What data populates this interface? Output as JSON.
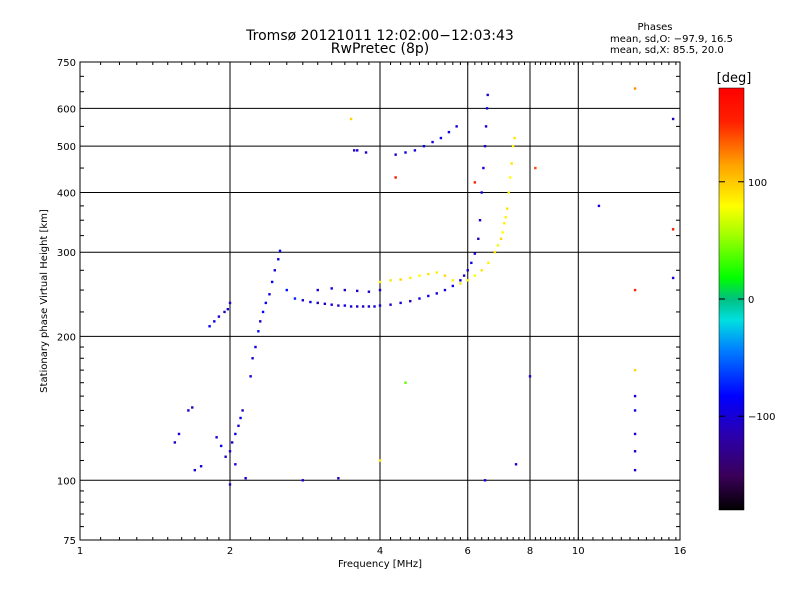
{
  "chart_data": {
    "type": "scatter",
    "title": "Tromsø 20121011 12:02:00−12:03:43",
    "subtitle": "RwPretec (8p)",
    "xlabel": "Frequency [MHz]",
    "ylabel": "Stationary phase Virtual Height [km]",
    "x_scale": "log",
    "y_scale": "log",
    "xlim": [
      1,
      16
    ],
    "ylim": [
      75,
      750
    ],
    "x_ticks": [
      1,
      2,
      4,
      6,
      8,
      10,
      16
    ],
    "x_tick_labels": [
      "1",
      "2",
      "4",
      "6",
      "8",
      "10",
      "16"
    ],
    "y_ticks": [
      75,
      100,
      200,
      300,
      400,
      500,
      600,
      750
    ],
    "y_tick_labels": [
      "75",
      "100",
      "200",
      "300",
      "400",
      "500",
      "600",
      "750"
    ],
    "grid": true,
    "phase_stats": {
      "title": "Phases",
      "line1": "mean, sd,O: −97.9, 16.5",
      "line2": "mean, sd,X:  85.5, 20.0"
    },
    "colorbar": {
      "label": "[deg]",
      "tick_values": [
        100,
        0,
        -100
      ],
      "tick_labels": [
        "100",
        "0",
        "−100"
      ],
      "range": [
        -180,
        180
      ],
      "colormap": "rainbow"
    },
    "series": [
      {
        "mode": "O",
        "phase_mean": -97.9,
        "points": [
          [
            1.55,
            120,
            -110
          ],
          [
            1.58,
            125,
            -105
          ],
          [
            1.65,
            140,
            -100
          ],
          [
            1.68,
            142,
            -110
          ],
          [
            1.7,
            105,
            -100
          ],
          [
            1.75,
            107,
            -95
          ],
          [
            1.82,
            210,
            -90
          ],
          [
            1.86,
            215,
            -95
          ],
          [
            1.9,
            220,
            -100
          ],
          [
            1.95,
            225,
            -110
          ],
          [
            2.0,
            235,
            -100
          ],
          [
            1.98,
            228,
            -95
          ],
          [
            1.88,
            123,
            -100
          ],
          [
            1.92,
            118,
            -95
          ],
          [
            1.96,
            112,
            -110
          ],
          [
            2.0,
            115,
            -100
          ],
          [
            2.02,
            120,
            -105
          ],
          [
            2.05,
            125,
            -95
          ],
          [
            2.08,
            130,
            -100
          ],
          [
            2.1,
            135,
            -90
          ],
          [
            2.12,
            140,
            -110
          ],
          [
            2.05,
            108,
            -100
          ],
          [
            2.0,
            98,
            -110
          ],
          [
            2.15,
            101,
            -100
          ],
          [
            2.2,
            165,
            -95
          ],
          [
            2.22,
            180,
            -100
          ],
          [
            2.25,
            190,
            -95
          ],
          [
            2.28,
            205,
            -80
          ],
          [
            2.3,
            215,
            -100
          ],
          [
            2.33,
            225,
            -90
          ],
          [
            2.36,
            235,
            -85
          ],
          [
            2.4,
            245,
            -100
          ],
          [
            2.43,
            260,
            -90
          ],
          [
            2.46,
            275,
            -100
          ],
          [
            2.5,
            290,
            -95
          ],
          [
            2.52,
            302,
            -90
          ],
          [
            2.6,
            250,
            -80
          ],
          [
            2.7,
            240,
            -75
          ],
          [
            2.8,
            238,
            -100
          ],
          [
            2.9,
            236,
            -95
          ],
          [
            3.0,
            235,
            -110
          ],
          [
            3.1,
            234,
            -105
          ],
          [
            3.2,
            233,
            -100
          ],
          [
            3.3,
            232,
            -110
          ],
          [
            3.4,
            232,
            -95
          ],
          [
            3.5,
            231,
            -100
          ],
          [
            3.6,
            231,
            -105
          ],
          [
            3.7,
            231,
            -110
          ],
          [
            3.8,
            231,
            -100
          ],
          [
            3.9,
            231,
            -95
          ],
          [
            4.0,
            232,
            -100
          ],
          [
            4.2,
            233,
            -105
          ],
          [
            4.4,
            235,
            -100
          ],
          [
            4.6,
            237,
            -110
          ],
          [
            4.8,
            240,
            -100
          ],
          [
            5.0,
            243,
            -95
          ],
          [
            5.2,
            246,
            -100
          ],
          [
            5.4,
            250,
            -100
          ],
          [
            5.6,
            255,
            -95
          ],
          [
            5.8,
            262,
            -100
          ],
          [
            5.9,
            268,
            -110
          ],
          [
            6.0,
            275,
            -100
          ],
          [
            6.1,
            285,
            -95
          ],
          [
            6.2,
            298,
            -100
          ],
          [
            6.3,
            320,
            -110
          ],
          [
            6.35,
            350,
            -100
          ],
          [
            6.4,
            400,
            -95
          ],
          [
            6.45,
            450,
            -100
          ],
          [
            6.5,
            500,
            -110
          ],
          [
            6.53,
            550,
            -100
          ],
          [
            6.56,
            600,
            -95
          ],
          [
            6.58,
            640,
            -100
          ],
          [
            3.0,
            250,
            -100
          ],
          [
            3.2,
            252,
            -95
          ],
          [
            3.4,
            250,
            -110
          ],
          [
            3.6,
            249,
            -100
          ],
          [
            3.8,
            248,
            -105
          ],
          [
            4.0,
            250,
            -100
          ],
          [
            4.3,
            480,
            -100
          ],
          [
            4.5,
            485,
            -95
          ],
          [
            4.7,
            490,
            -100
          ],
          [
            4.9,
            500,
            -95
          ],
          [
            5.1,
            510,
            -100
          ],
          [
            5.3,
            520,
            -90
          ],
          [
            5.5,
            535,
            -95
          ],
          [
            5.7,
            550,
            -100
          ],
          [
            3.6,
            490,
            -100
          ],
          [
            3.55,
            490,
            -110
          ],
          [
            3.75,
            485,
            -100
          ],
          [
            6.5,
            100,
            -100
          ],
          [
            11.0,
            375,
            -100
          ],
          [
            13.0,
            105,
            -100
          ],
          [
            13.0,
            115,
            -105
          ],
          [
            13.0,
            125,
            -100
          ],
          [
            13.0,
            140,
            -95
          ],
          [
            13.0,
            150,
            -100
          ],
          [
            15.5,
            265,
            -100
          ],
          [
            15.5,
            570,
            -110
          ],
          [
            7.5,
            108,
            -100
          ],
          [
            8.0,
            165,
            -100
          ],
          [
            3.3,
            101,
            -110
          ],
          [
            2.8,
            100,
            -100
          ]
        ]
      },
      {
        "mode": "X",
        "phase_mean": 85.5,
        "points": [
          [
            4.0,
            260,
            85
          ],
          [
            4.2,
            262,
            90
          ],
          [
            4.4,
            263,
            95
          ],
          [
            4.6,
            265,
            85
          ],
          [
            4.8,
            268,
            80
          ],
          [
            5.0,
            270,
            90
          ],
          [
            5.2,
            272,
            85
          ],
          [
            5.4,
            268,
            95
          ],
          [
            5.6,
            262,
            85
          ],
          [
            5.8,
            258,
            90
          ],
          [
            6.0,
            262,
            85
          ],
          [
            6.2,
            268,
            80
          ],
          [
            6.4,
            275,
            90
          ],
          [
            6.6,
            285,
            85
          ],
          [
            6.8,
            300,
            90
          ],
          [
            7.0,
            320,
            95
          ],
          [
            7.1,
            345,
            85
          ],
          [
            7.2,
            370,
            90
          ],
          [
            7.25,
            400,
            85
          ],
          [
            7.3,
            430,
            80
          ],
          [
            7.35,
            460,
            90
          ],
          [
            7.4,
            500,
            85
          ],
          [
            7.45,
            520,
            90
          ],
          [
            6.9,
            310,
            75
          ],
          [
            7.05,
            330,
            80
          ],
          [
            7.15,
            355,
            85
          ],
          [
            3.5,
            570,
            95
          ],
          [
            13.0,
            660,
            120
          ],
          [
            13.0,
            170,
            95
          ],
          [
            4.0,
            110,
            85
          ],
          [
            4.5,
            160,
            40
          ],
          [
            4.3,
            430,
            160
          ],
          [
            13.0,
            250,
            150
          ],
          [
            15.5,
            335,
            160
          ],
          [
            8.2,
            450,
            140
          ],
          [
            6.2,
            420,
            150
          ]
        ]
      }
    ]
  }
}
